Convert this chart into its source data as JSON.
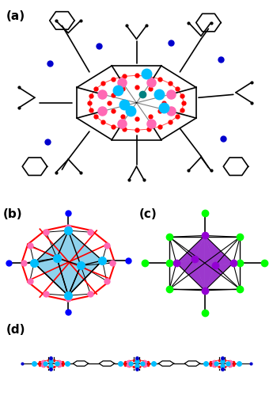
{
  "bg_color": "#ffffff",
  "label_fontsize": 11,
  "panel_labels": [
    "(a)",
    "(b)",
    "(c)",
    "(d)"
  ],
  "colors": {
    "Mn": "#00BFFF",
    "P": "#FF69B4",
    "O": "#FF0000",
    "C": "#000000",
    "N": "#0000CD",
    "Cl_green": "#00FF00",
    "Mo": "#9400D3",
    "teal": "#008080",
    "blue_dark": "#0000FF",
    "cyan_fill": "#87CEEB",
    "purple_fill": "#9932CC",
    "red_edge": "#FF0000"
  }
}
